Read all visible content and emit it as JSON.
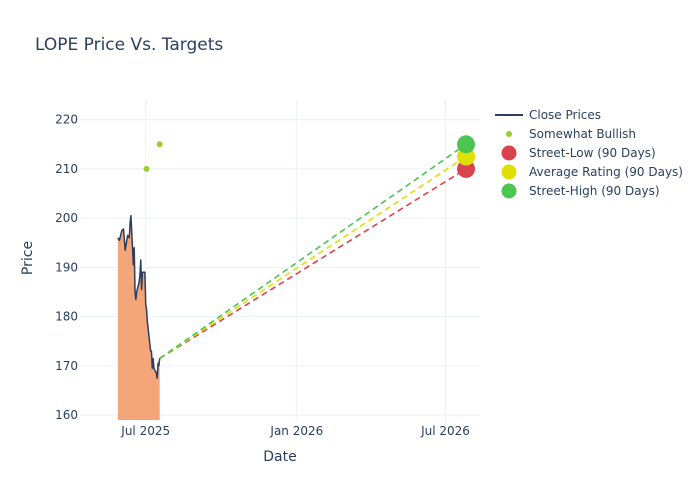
{
  "chart_data": {
    "type": "line",
    "title": "LOPE Price Vs. Targets",
    "xlabel": "Date",
    "ylabel": "Price",
    "x_type": "date",
    "xlim": [
      "2025-04-12",
      "2026-08-12"
    ],
    "ylim": [
      159,
      224
    ],
    "x_ticks": [
      {
        "date": "2025-07-01",
        "label": "Jul 2025"
      },
      {
        "date": "2026-01-01",
        "label": "Jan 2026"
      },
      {
        "date": "2026-07-01",
        "label": "Jul 2026"
      }
    ],
    "y_ticks": [
      160,
      170,
      180,
      190,
      200,
      210,
      220
    ],
    "grid": true,
    "legend_position": "right",
    "legend": [
      {
        "label": "Close Prices",
        "kind": "line",
        "color": "#2a3f5f"
      },
      {
        "label": "Somewhat Bullish",
        "kind": "dot",
        "color": "#9acd32"
      },
      {
        "label": "Street-Low (90 Days)",
        "kind": "circle",
        "color": "#d9434f"
      },
      {
        "label": "Average Rating (90 Days)",
        "kind": "circle",
        "color": "#e0e000"
      },
      {
        "label": "Street-High (90 Days)",
        "kind": "circle",
        "color": "#4cc552"
      }
    ],
    "close_prices": {
      "name": "Close Prices",
      "color": "#2a3f5f",
      "fill_color": "#f4a57a",
      "points": [
        [
          "2025-05-28",
          196
        ],
        [
          "2025-05-30",
          195.5
        ],
        [
          "2025-06-02",
          197.5
        ],
        [
          "2025-06-04",
          197.8
        ],
        [
          "2025-06-06",
          193.5
        ],
        [
          "2025-06-09",
          196.5
        ],
        [
          "2025-06-11",
          196
        ],
        [
          "2025-06-12",
          199
        ],
        [
          "2025-06-13",
          200.5
        ],
        [
          "2025-06-16",
          190.5
        ],
        [
          "2025-06-17",
          194
        ],
        [
          "2025-06-18",
          185
        ],
        [
          "2025-06-19",
          183.5
        ],
        [
          "2025-06-20",
          185
        ],
        [
          "2025-06-23",
          187
        ],
        [
          "2025-06-24",
          188.5
        ],
        [
          "2025-06-25",
          191.5
        ],
        [
          "2025-06-26",
          185.5
        ],
        [
          "2025-06-27",
          189
        ],
        [
          "2025-06-30",
          189
        ],
        [
          "2025-07-01",
          182.5
        ],
        [
          "2025-07-02",
          181.5
        ],
        [
          "2025-07-03",
          179
        ],
        [
          "2025-07-07",
          173
        ],
        [
          "2025-07-08",
          173
        ],
        [
          "2025-07-09",
          169.5
        ],
        [
          "2025-07-10",
          171.5
        ],
        [
          "2025-07-11",
          169.5
        ],
        [
          "2025-07-14",
          168.5
        ],
        [
          "2025-07-15",
          167.5
        ],
        [
          "2025-07-16",
          170.5
        ],
        [
          "2025-07-17",
          170
        ],
        [
          "2025-07-18",
          171.5
        ]
      ]
    },
    "analyst_ratings": {
      "name": "Somewhat Bullish",
      "color": "#9acd32",
      "points": [
        [
          "2025-07-02",
          210
        ],
        [
          "2025-07-18",
          215
        ]
      ]
    },
    "targets": {
      "start": [
        "2025-07-18",
        171.5
      ],
      "target_date": "2026-07-26",
      "street_low": {
        "name": "Street-Low (90 Days)",
        "value": 210,
        "color": "#d9434f"
      },
      "average": {
        "name": "Average Rating (90 Days)",
        "value": 212.5,
        "color": "#e0e000"
      },
      "street_high": {
        "name": "Street-High (90 Days)",
        "value": 215,
        "color": "#4cc552"
      }
    },
    "colors": {
      "title": "#2a3f5f",
      "axis_text": "#2a3f5f",
      "grid": "#ebf0f8"
    }
  }
}
